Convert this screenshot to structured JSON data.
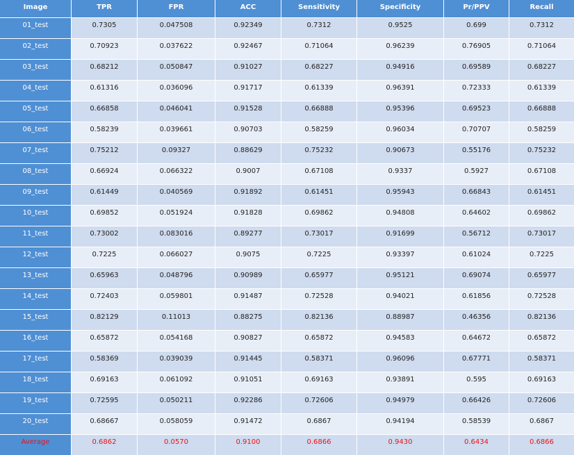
{
  "table": {
    "header": [
      "Image",
      "TPR",
      "FPR",
      "ACC",
      "Sensitivity",
      "Specificity",
      "Pr/PPV",
      "Recall"
    ],
    "rows": [
      [
        "01_test",
        "0.7305",
        "0.047508",
        "0.92349",
        "0.7312",
        "0.9525",
        "0.699",
        "0.7312"
      ],
      [
        "02_test",
        "0.70923",
        "0.037622",
        "0.92467",
        "0.71064",
        "0.96239",
        "0.76905",
        "0.71064"
      ],
      [
        "03_test",
        "0.68212",
        "0.050847",
        "0.91027",
        "0.68227",
        "0.94916",
        "0.69589",
        "0.68227"
      ],
      [
        "04_test",
        "0.61316",
        "0.036096",
        "0.91717",
        "0.61339",
        "0.96391",
        "0.72333",
        "0.61339"
      ],
      [
        "05_test",
        "0.66858",
        "0.046041",
        "0.91528",
        "0.66888",
        "0.95396",
        "0.69523",
        "0.66888"
      ],
      [
        "06_test",
        "0.58239",
        "0.039661",
        "0.90703",
        "0.58259",
        "0.96034",
        "0.70707",
        "0.58259"
      ],
      [
        "07_test",
        "0.75212",
        "0.09327",
        "0.88629",
        "0.75232",
        "0.90673",
        "0.55176",
        "0.75232"
      ],
      [
        "08_test",
        "0.66924",
        "0.066322",
        "0.9007",
        "0.67108",
        "0.9337",
        "0.5927",
        "0.67108"
      ],
      [
        "09_test",
        "0.61449",
        "0.040569",
        "0.91892",
        "0.61451",
        "0.95943",
        "0.66843",
        "0.61451"
      ],
      [
        "10_test",
        "0.69852",
        "0.051924",
        "0.91828",
        "0.69862",
        "0.94808",
        "0.64602",
        "0.69862"
      ],
      [
        "11_test",
        "0.73002",
        "0.083016",
        "0.89277",
        "0.73017",
        "0.91699",
        "0.56712",
        "0.73017"
      ],
      [
        "12_test",
        "0.7225",
        "0.066027",
        "0.9075",
        "0.7225",
        "0.93397",
        "0.61024",
        "0.7225"
      ],
      [
        "13_test",
        "0.65963",
        "0.048796",
        "0.90989",
        "0.65977",
        "0.95121",
        "0.69074",
        "0.65977"
      ],
      [
        "14_test",
        "0.72403",
        "0.059801",
        "0.91487",
        "0.72528",
        "0.94021",
        "0.61856",
        "0.72528"
      ],
      [
        "15_test",
        "0.82129",
        "0.11013",
        "0.88275",
        "0.82136",
        "0.88987",
        "0.46356",
        "0.82136"
      ],
      [
        "16_test",
        "0.65872",
        "0.054168",
        "0.90827",
        "0.65872",
        "0.94583",
        "0.64672",
        "0.65872"
      ],
      [
        "17_test",
        "0.58369",
        "0.039039",
        "0.91445",
        "0.58371",
        "0.96096",
        "0.67771",
        "0.58371"
      ],
      [
        "18_test",
        "0.69163",
        "0.061092",
        "0.91051",
        "0.69163",
        "0.93891",
        "0.595",
        "0.69163"
      ],
      [
        "19_test",
        "0.72595",
        "0.050211",
        "0.92286",
        "0.72606",
        "0.94979",
        "0.66426",
        "0.72606"
      ],
      [
        "20_test",
        "0.68667",
        "0.058059",
        "0.91472",
        "0.6867",
        "0.94194",
        "0.58539",
        "0.6867"
      ]
    ],
    "average": [
      "Average",
      "0.6862",
      "0.0570",
      "0.9100",
      "0.6866",
      "0.9430",
      "0.6434",
      "0.6866"
    ]
  }
}
